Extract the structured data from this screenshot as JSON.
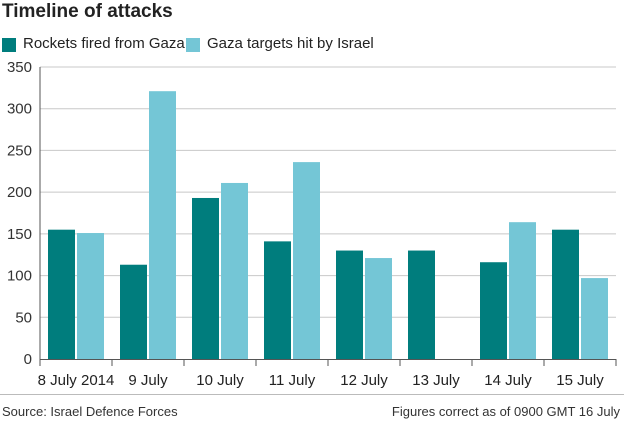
{
  "chart_data": {
    "type": "bar",
    "title": "Timeline of attacks",
    "categories": [
      "8 July 2014",
      "9 July",
      "10 July",
      "11 July",
      "12 July",
      "13 July",
      "14 July",
      "15 July"
    ],
    "series": [
      {
        "name": "Rockets fired from Gaza",
        "color": "#007d7d",
        "values": [
          155,
          113,
          193,
          141,
          130,
          130,
          116,
          155
        ]
      },
      {
        "name": "Gaza targets hit by Israel",
        "color": "#74c6d6",
        "values": [
          151,
          321,
          211,
          236,
          121,
          null,
          164,
          97
        ]
      }
    ],
    "ylim": [
      0,
      350
    ],
    "yticks": [
      0,
      50,
      100,
      150,
      200,
      250,
      300,
      350
    ],
    "grid": true,
    "legend_position": "top-left",
    "source": "Source: Israel Defence Forces",
    "note": "Figures correct as of 0900 GMT 16 July"
  }
}
